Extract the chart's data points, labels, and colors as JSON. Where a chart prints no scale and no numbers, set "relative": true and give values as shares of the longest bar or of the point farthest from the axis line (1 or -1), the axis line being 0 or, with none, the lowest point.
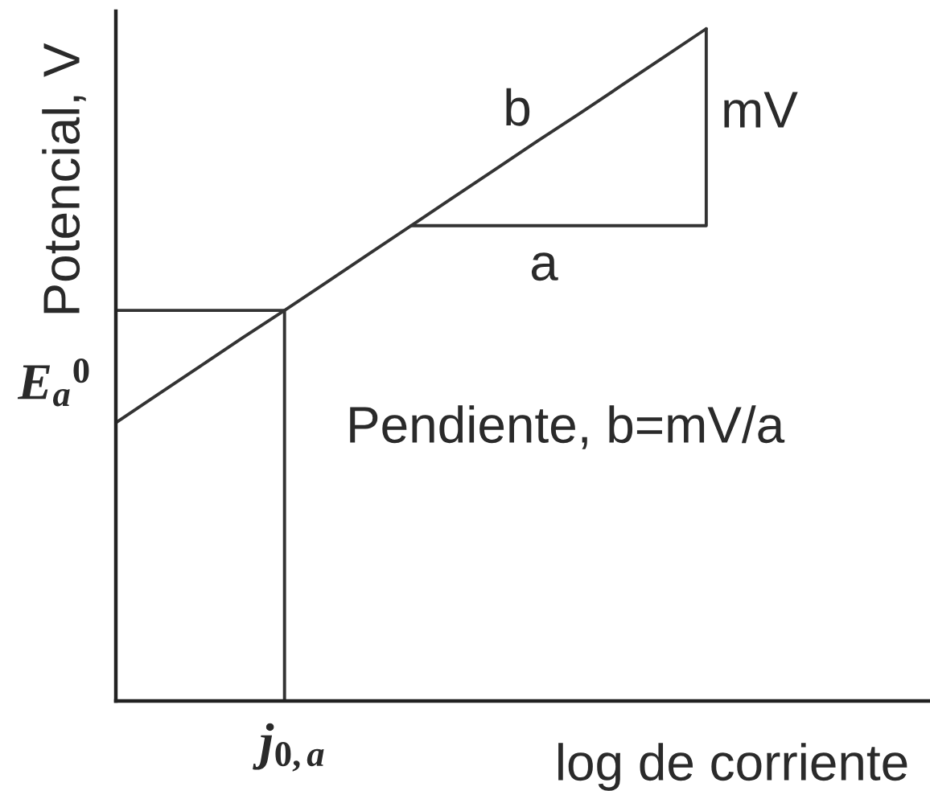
{
  "chart_data": {
    "type": "line",
    "relative": true,
    "xlabel": "log de corriente",
    "ylabel": "Potencial, V",
    "categories": [
      null,
      null,
      null,
      null,
      null,
      null,
      null,
      null,
      null,
      null,
      null,
      null,
      null,
      null,
      null
    ],
    "series": [
      {
        "name": "b",
        "color": "#333333",
        "values": [
          0.414,
          0.456,
          0.498,
          0.54,
          0.581,
          0.623,
          0.665,
          0.707,
          0.749,
          0.791,
          0.833,
          0.874,
          0.916,
          0.958,
          1.0
        ]
      },
      {
        "type": "step",
        "color": "#333333",
        "values": [
          0.581,
          0.581,
          0.581,
          0.581,
          0,
          null,
          null,
          null,
          null,
          null,
          null,
          null,
          null,
          null,
          null
        ]
      },
      {
        "type": "step",
        "color": "#333333",
        "values": [
          null,
          null,
          null,
          null,
          null,
          null,
          null,
          0.707,
          0.707,
          0.707,
          0.707,
          0.707,
          0.707,
          0.707,
          1.0
        ]
      }
    ],
    "annotations": [
      "mV",
      "a",
      "Pendiente, b=mV/a",
      "E$_{a}$$^{0}$",
      "j$_{0,a}$"
    ]
  }
}
